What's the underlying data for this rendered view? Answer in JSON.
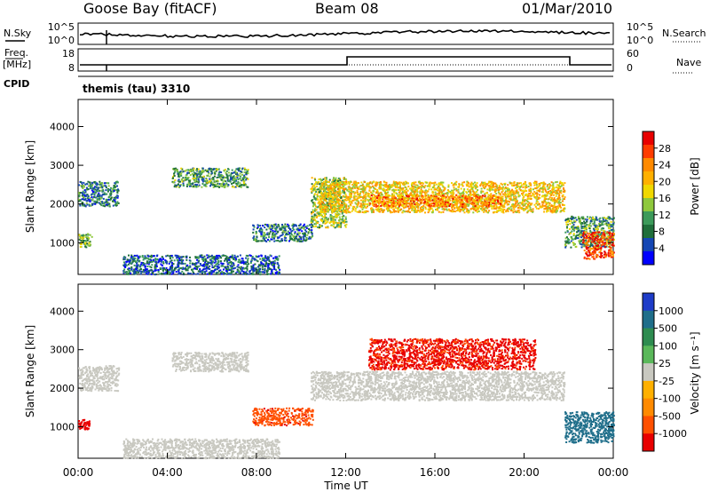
{
  "header": {
    "station": "Goose Bay (fitACF)",
    "beam": "Beam 08",
    "date": "01/Mar/2010"
  },
  "strip_labels": {
    "nsky": "N.Sky",
    "nsky_ticks": [
      "10^5",
      "10^0"
    ],
    "nsearch": "N.Search",
    "nsearch_ticks": [
      "10^5",
      "10^0"
    ],
    "freq_line1": "Freq.",
    "freq_line2": "[MHz]",
    "freq_ticks": [
      "18",
      "8"
    ],
    "nave": "Nave",
    "nave_ticks": [
      "60",
      "0"
    ],
    "cpid": "CPID",
    "cpid_text": "themis (tau) 3310"
  },
  "colorbars": {
    "power": {
      "label": "Power [dB]",
      "ticks": [
        "28",
        "24",
        "20",
        "16",
        "12",
        "8",
        "4"
      ],
      "colors": [
        "#e80000",
        "#ff3c00",
        "#ff8a00",
        "#ffb000",
        "#f0d800",
        "#8ec83c",
        "#3c9a5a",
        "#1f6e3a",
        "#1446b4",
        "#0000ff"
      ]
    },
    "velocity": {
      "label": "Velocity [m s⁻¹]",
      "ticks": [
        "1000",
        "500",
        "100",
        "25",
        "-25",
        "-100",
        "-500",
        "-1000"
      ],
      "colors": [
        "#1e3cc8",
        "#1f6e8a",
        "#2e8c50",
        "#5ab85a",
        "#c8c8c0",
        "#ffb000",
        "#ff8a00",
        "#ff5000",
        "#e80000"
      ]
    }
  },
  "chart_data": [
    {
      "type": "heatmap",
      "panel": "power",
      "ylabel": "Slant Range [km]",
      "yticks": [
        1000,
        2000,
        3000,
        4000
      ],
      "ylim": [
        180,
        4700
      ],
      "xticks": [
        "00:00",
        "04:00",
        "08:00",
        "12:00",
        "16:00",
        "20:00",
        "00:00"
      ],
      "xlim": [
        0,
        24
      ],
      "colorbar_range": [
        0,
        30
      ],
      "regions": [
        {
          "t": [
            0.0,
            1.8
          ],
          "r": [
            1950,
            2600
          ],
          "v": 8
        },
        {
          "t": [
            4.2,
            7.6
          ],
          "r": [
            2450,
            2950
          ],
          "v": 10
        },
        {
          "t": [
            10.4,
            12.0
          ],
          "r": [
            1400,
            2700
          ],
          "v": 14
        },
        {
          "t": [
            10.8,
            21.8
          ],
          "r": [
            1800,
            2600
          ],
          "v": 18
        },
        {
          "t": [
            13.0,
            19.0
          ],
          "r": [
            1950,
            2250
          ],
          "v": 22
        },
        {
          "t": [
            21.8,
            24.0
          ],
          "r": [
            900,
            1700
          ],
          "v": 10
        },
        {
          "t": [
            22.6,
            24.0
          ],
          "r": [
            600,
            1300
          ],
          "v": 26
        },
        {
          "t": [
            0.0,
            0.6
          ],
          "r": [
            900,
            1250
          ],
          "v": 12
        },
        {
          "t": [
            7.8,
            10.5
          ],
          "r": [
            1050,
            1500
          ],
          "v": 8
        },
        {
          "t": [
            2.0,
            9.0
          ],
          "r": [
            200,
            700
          ],
          "v": 6
        }
      ]
    },
    {
      "type": "heatmap",
      "panel": "velocity",
      "ylabel": "Slant Range [km]",
      "yticks": [
        1000,
        2000,
        3000,
        4000
      ],
      "ylim": [
        180,
        4700
      ],
      "xticks": [
        "00:00",
        "04:00",
        "08:00",
        "12:00",
        "16:00",
        "20:00",
        "00:00"
      ],
      "xlabel": "Time UT",
      "xlim": [
        0,
        24
      ],
      "colorbar_range": [
        -1000,
        1000
      ],
      "regions": [
        {
          "t": [
            0.0,
            1.8
          ],
          "r": [
            1950,
            2600
          ],
          "v": 0
        },
        {
          "t": [
            4.2,
            7.6
          ],
          "r": [
            2450,
            2950
          ],
          "v": 0
        },
        {
          "t": [
            10.4,
            21.8
          ],
          "r": [
            1700,
            2450
          ],
          "v": 0
        },
        {
          "t": [
            13.0,
            20.5
          ],
          "r": [
            2500,
            3300
          ],
          "v": -300
        },
        {
          "t": [
            7.8,
            10.5
          ],
          "r": [
            1050,
            1500
          ],
          "v": -150
        },
        {
          "t": [
            0.0,
            0.5
          ],
          "r": [
            950,
            1200
          ],
          "v": -600
        },
        {
          "t": [
            21.8,
            24.0
          ],
          "r": [
            600,
            1400
          ],
          "v": 120
        },
        {
          "t": [
            2.0,
            9.0
          ],
          "r": [
            200,
            700
          ],
          "v": 0
        }
      ]
    }
  ]
}
